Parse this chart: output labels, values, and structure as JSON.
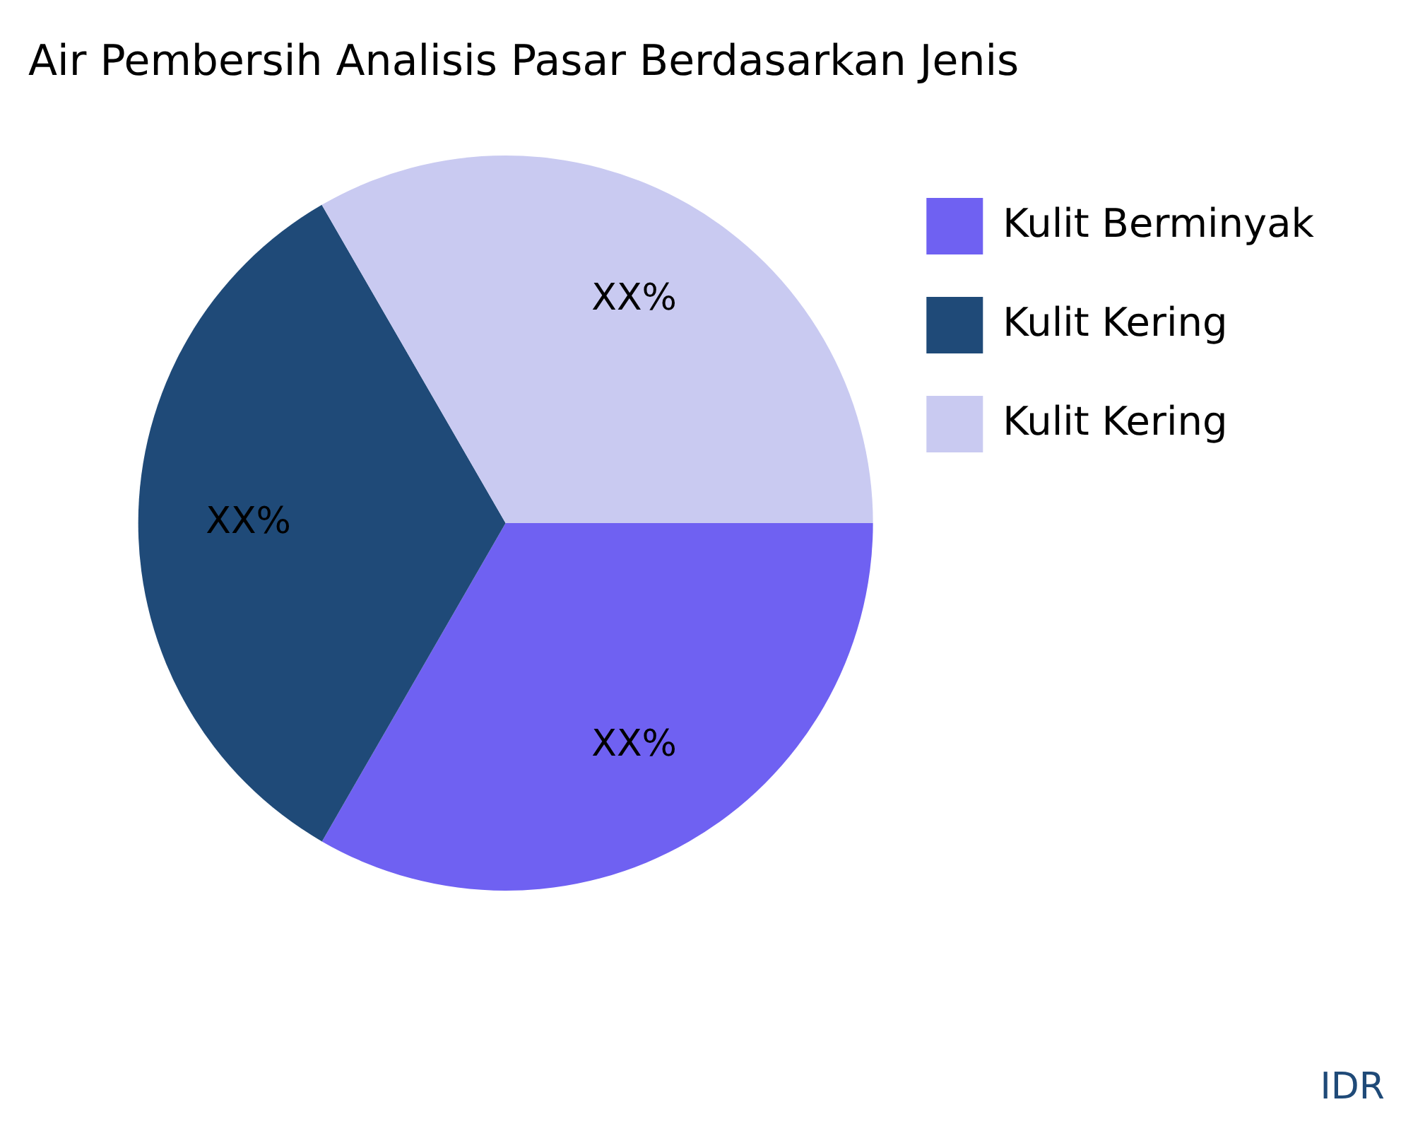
{
  "chart_data": {
    "type": "pie",
    "title": "Air Pembersih Analisis Pasar Berdasarkan Jenis",
    "categories": [
      "Kulit Berminyak",
      "Kulit Kering",
      "Kulit Kering"
    ],
    "values": [
      33.33,
      33.33,
      33.34
    ],
    "colors": [
      "#6f61f2",
      "#1f4a78",
      "#c9caf1"
    ],
    "value_labels": [
      "XX%",
      "XX%",
      "XX%"
    ],
    "legend": "top right",
    "annotations": [
      "IDR"
    ]
  }
}
